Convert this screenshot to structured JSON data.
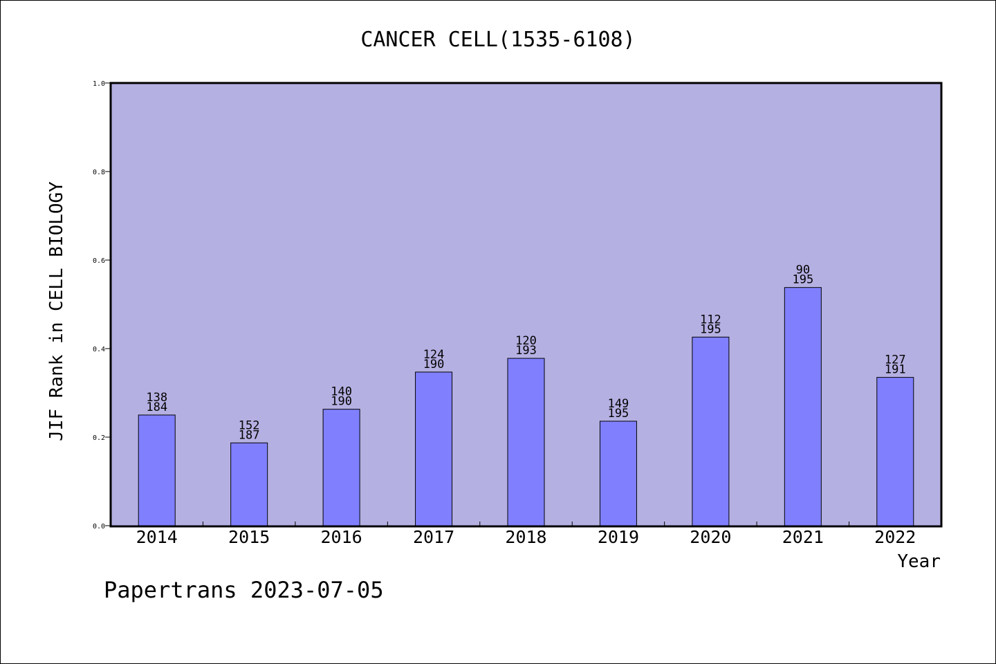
{
  "chart_data": {
    "type": "bar",
    "title": "CANCER CELL(1535-6108)",
    "xlabel": "Year",
    "ylabel": "JIF Rank in CELL BIOLOGY",
    "ylim": [
      0,
      1.0
    ],
    "yticks": [
      "0.0",
      "0.2",
      "0.4",
      "0.6",
      "0.8",
      "1.0"
    ],
    "categories": [
      "2014",
      "2015",
      "2016",
      "2017",
      "2018",
      "2019",
      "2020",
      "2021",
      "2022"
    ],
    "values": [
      0.25,
      0.187,
      0.263,
      0.347,
      0.378,
      0.236,
      0.426,
      0.538,
      0.335
    ],
    "rank_labels": [
      {
        "rank": "138",
        "total": "184"
      },
      {
        "rank": "152",
        "total": "187"
      },
      {
        "rank": "140",
        "total": "190"
      },
      {
        "rank": "124",
        "total": "190"
      },
      {
        "rank": "120",
        "total": "193"
      },
      {
        "rank": "149",
        "total": "195"
      },
      {
        "rank": "112",
        "total": "195"
      },
      {
        "rank": "90",
        "total": "195"
      },
      {
        "rank": "127",
        "total": "191"
      }
    ],
    "grid": false,
    "colors": {
      "plot_background": "#b5b0e2",
      "bar_fill": "#8080ff",
      "bar_stroke": "#000000"
    }
  },
  "footer": {
    "watermark": "Papertrans 2023-07-05"
  }
}
